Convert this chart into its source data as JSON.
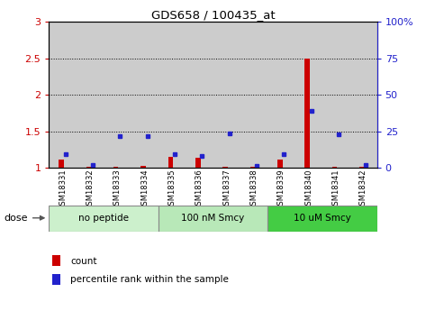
{
  "title": "GDS658 / 100435_at",
  "samples": [
    "GSM18331",
    "GSM18332",
    "GSM18333",
    "GSM18334",
    "GSM18335",
    "GSM18336",
    "GSM18337",
    "GSM18338",
    "GSM18339",
    "GSM18340",
    "GSM18341",
    "GSM18342"
  ],
  "red_values": [
    1.12,
    1.01,
    1.02,
    1.03,
    1.15,
    1.14,
    1.02,
    1.01,
    1.12,
    2.5,
    1.02,
    1.01
  ],
  "blue_values": [
    1.19,
    1.04,
    1.43,
    1.43,
    1.19,
    1.16,
    1.47,
    1.03,
    1.19,
    1.78,
    1.46,
    1.04
  ],
  "ylim": [
    1.0,
    3.0
  ],
  "yticks_left": [
    1.0,
    1.5,
    2.0,
    2.5,
    3.0
  ],
  "ytick_labels_left": [
    "1",
    "1.5",
    "2",
    "2.5",
    "3"
  ],
  "ytick_pct": [
    0,
    25,
    50,
    75,
    100
  ],
  "ytick_labels_right": [
    "0",
    "25",
    "50",
    "75",
    "100%"
  ],
  "groups": [
    {
      "label": "no peptide",
      "start": 0,
      "end": 4,
      "color": "#ccf0cc"
    },
    {
      "label": "100 nM Smcy",
      "start": 4,
      "end": 8,
      "color": "#b8e8b8"
    },
    {
      "label": "10 uM Smcy",
      "start": 8,
      "end": 12,
      "color": "#44bb44"
    }
  ],
  "dose_label": "dose",
  "red_color": "#cc0000",
  "blue_color": "#2222cc",
  "legend_red": "count",
  "legend_blue": "percentile rank within the sample",
  "sample_bg_color": "#cccccc",
  "bg_color": "#ffffff"
}
